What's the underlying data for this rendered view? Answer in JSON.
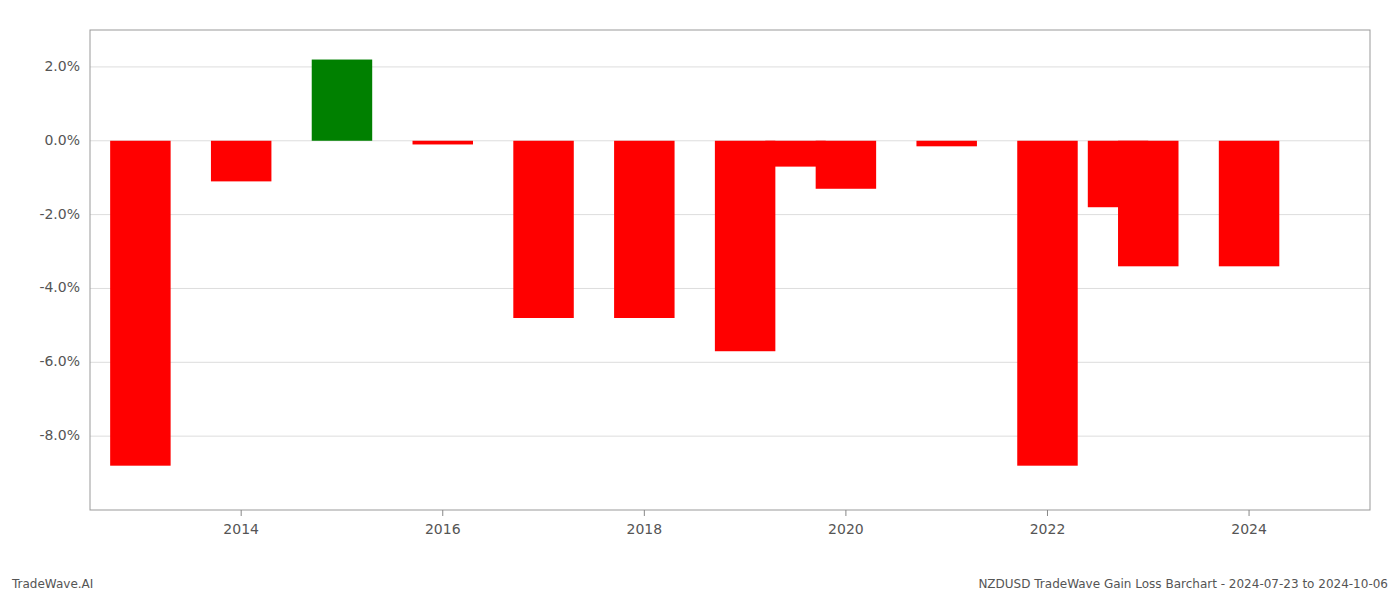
{
  "chart_data": {
    "type": "bar",
    "x": [
      2013,
      2014,
      2015,
      2016,
      2017,
      2018,
      2019,
      2019.5,
      2020,
      2021,
      2022,
      2022.7,
      2023,
      2024
    ],
    "values": [
      -8.8,
      -1.1,
      2.2,
      -0.1,
      -4.8,
      -4.8,
      -5.7,
      -0.7,
      -1.3,
      -0.15,
      -8.8,
      -1.8,
      -3.4,
      -3.4
    ],
    "colors": [
      "red",
      "red",
      "green",
      "red",
      "red",
      "red",
      "red",
      "red",
      "red",
      "red",
      "red",
      "red",
      "red",
      "red"
    ],
    "xlim": [
      2012.5,
      2025.2
    ],
    "xticks": [
      2014,
      2016,
      2018,
      2020,
      2022,
      2024
    ],
    "ylim": [
      -10,
      3
    ],
    "yticks": [
      {
        "value": -8.0,
        "label": "-8.0%"
      },
      {
        "value": -6.0,
        "label": "-6.0%"
      },
      {
        "value": -4.0,
        "label": "-4.0%"
      },
      {
        "value": -2.0,
        "label": "-2.0%"
      },
      {
        "value": 0.0,
        "label": "0.0%"
      },
      {
        "value": 2.0,
        "label": "2.0%"
      }
    ],
    "grid": true,
    "annotations": [
      "TradeWave.AI",
      "NZDUSD TradeWave Gain Loss Barchart - 2024-07-23 to 2024-10-06"
    ]
  }
}
